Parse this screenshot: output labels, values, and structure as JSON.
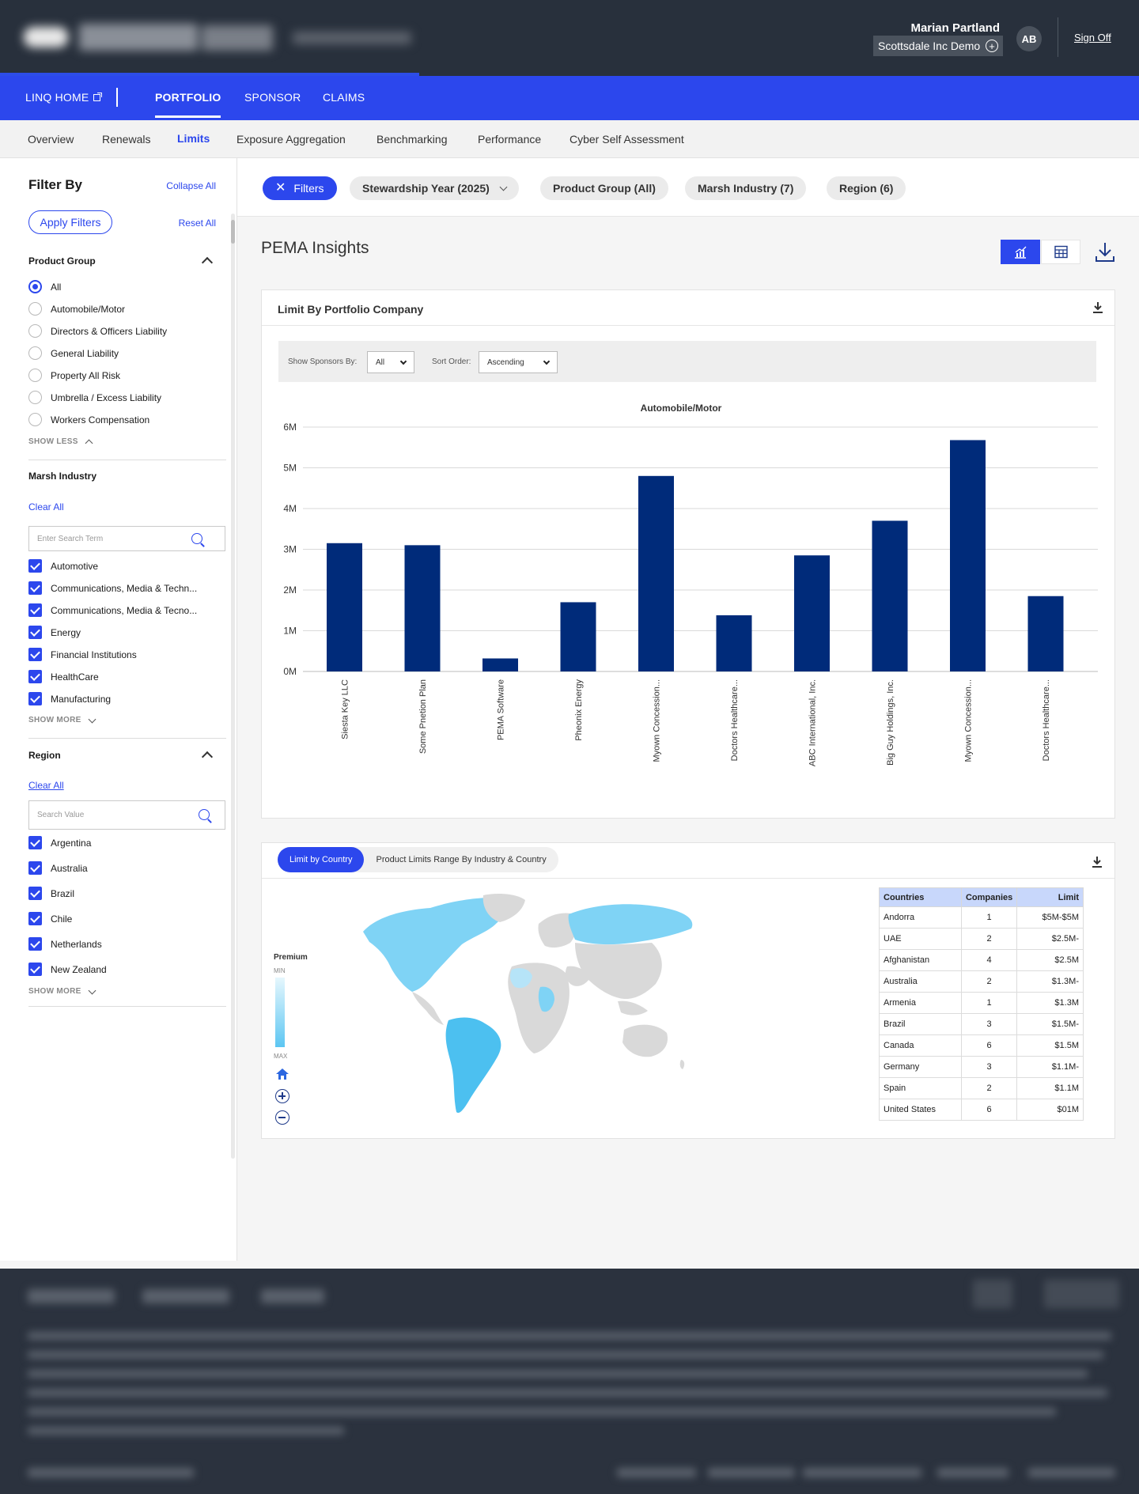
{
  "header": {
    "user_name": "Marian Partland",
    "org_name": "Scottsdale Inc Demo",
    "avatar_initials": "AB",
    "sign_off": "Sign Off"
  },
  "main_nav": {
    "linq_home": "LINQ HOME",
    "items": [
      "PORTFOLIO",
      "SPONSOR",
      "CLAIMS"
    ],
    "active": "PORTFOLIO"
  },
  "sub_nav": {
    "tabs": [
      "Overview",
      "Renewals",
      "Limits",
      "Exposure Aggregation",
      "Benchmarking",
      "Performance",
      "Cyber Self Assessment"
    ],
    "active": "Limits"
  },
  "sidebar": {
    "title": "Filter By",
    "collapse_all": "Collapse All",
    "apply_filters": "Apply Filters",
    "reset_all": "Reset All",
    "product_group": {
      "label": "Product Group",
      "options": [
        "All",
        "Automobile/Motor",
        "Directors & Officers Liability",
        "General Liability",
        "Property All Risk",
        "Umbrella / Excess Liability",
        "Workers Compensation"
      ],
      "selected": "All",
      "toggle": "SHOW LESS"
    },
    "marsh_industry": {
      "label": "Marsh Industry",
      "clear_all": "Clear All",
      "search_placeholder": "Enter Search Term",
      "options": [
        "Automotive",
        "Communications, Media & Techn...",
        "Communications, Media & Tecno...",
        "Energy",
        "Financial Institutions",
        "HealthCare",
        "Manufacturing"
      ],
      "toggle": "SHOW MORE"
    },
    "region": {
      "label": "Region",
      "clear_all": "Clear All",
      "search_placeholder": "Search Value",
      "options": [
        "Argentina",
        "Australia",
        "Brazil",
        "Chile",
        "Netherlands",
        "New Zealand"
      ],
      "toggle": "SHOW MORE"
    }
  },
  "filter_bar": {
    "filters_button": "Filters",
    "pills": [
      "Stewardship Year (2025)",
      "Product Group (All)",
      "Marsh Industry (7)",
      "Region (6)"
    ]
  },
  "page_title": "PEMA Insights",
  "chart_card": {
    "title": "Limit By Portfolio Company",
    "show_sponsors_label": "Show Sponsors By:",
    "show_sponsors_value": "All",
    "sort_order_label": "Sort Order:",
    "sort_order_value": "Ascending"
  },
  "chart_data": {
    "type": "bar",
    "title": "Automobile/Motor",
    "xlabel": "",
    "ylabel": "",
    "categories": [
      "Siesta Key LLC",
      "Some Pnetion Plan",
      "PEMA Software",
      "Pheonix Energy",
      "Myown Concession...",
      "Doctors Healthcare...",
      "ABC International, Inc.",
      "Big Guy Holdings, Inc.",
      "Myown Concession...",
      "Doctors Healthcare..."
    ],
    "values": [
      3.15,
      3.1,
      0.32,
      1.7,
      4.8,
      1.38,
      2.85,
      3.7,
      5.68,
      1.85
    ],
    "ylim": [
      0,
      6
    ],
    "yticks": [
      "0M",
      "1M",
      "2M",
      "3M",
      "4M",
      "5M",
      "6M"
    ],
    "grid": true,
    "bar_color": "#002b7a"
  },
  "map_card": {
    "tabs": [
      "Limit by Country",
      "Product Limits Range By Industry & Country"
    ],
    "active_tab": "Limit by Country",
    "legend_title": "Premium",
    "legend_min": "MIN",
    "legend_max": "MAX",
    "table": {
      "headers": [
        "Countries",
        "Companies",
        "Limit"
      ],
      "rows": [
        [
          "Andorra",
          "1",
          "$5M-$5M"
        ],
        [
          "UAE",
          "2",
          "$2.5M-"
        ],
        [
          "Afghanistan",
          "4",
          "$2.5M"
        ],
        [
          "Australia",
          "2",
          "$1.3M-"
        ],
        [
          "Armenia",
          "1",
          "$1.3M"
        ],
        [
          "Brazil",
          "3",
          "$1.5M-"
        ],
        [
          "Canada",
          "6",
          "$1.5M"
        ],
        [
          "Germany",
          "3",
          "$1.1M-"
        ],
        [
          "Spain",
          "2",
          "$1.1M"
        ],
        [
          "United States",
          "6",
          "$01M"
        ]
      ]
    }
  },
  "colors": {
    "brand_blue": "#2c47ed",
    "header_dark": "#28303c",
    "bar_navy": "#002b7a",
    "map_highlight": "#7fd3f5",
    "map_strong": "#4cc0f0",
    "map_gray": "#d9d9d9"
  }
}
